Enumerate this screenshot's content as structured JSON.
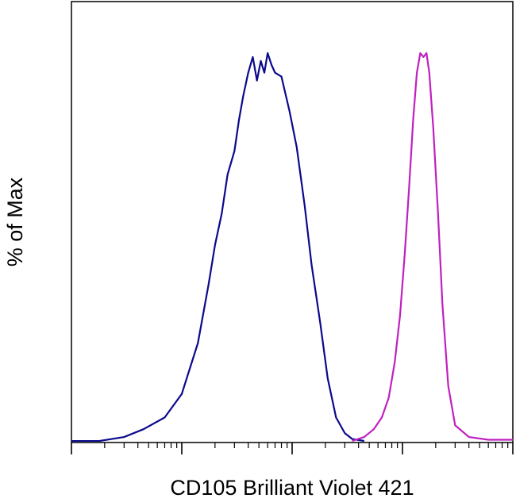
{
  "chart_data": {
    "type": "line",
    "title": "",
    "xlabel": "CD105 Brilliant Violet 421",
    "ylabel": "% of Max",
    "x_scale": "log",
    "xlim": [
      10,
      100000
    ],
    "ylim": [
      0,
      100
    ],
    "grid": false,
    "legend": "none",
    "series": [
      {
        "color": "#0a0a8c",
        "x": [
          18,
          30,
          45,
          70,
          100,
          140,
          175,
          200,
          230,
          260,
          300,
          330,
          360,
          400,
          440,
          480,
          520,
          560,
          600,
          650,
          700,
          800,
          950,
          1100,
          1300,
          1500,
          1800,
          2100,
          2500,
          3000,
          3500,
          4500
        ],
        "y": [
          0,
          1,
          3,
          6,
          12,
          25,
          40,
          50,
          58,
          68,
          74,
          82,
          88,
          94,
          98,
          92,
          97,
          94,
          99,
          96,
          94,
          93,
          84,
          75,
          60,
          45,
          30,
          16,
          6,
          2,
          0.5,
          0
        ]
      },
      {
        "color": "#c020c0",
        "x": [
          3500,
          4500,
          5500,
          6500,
          7500,
          8500,
          9500,
          10500,
          11500,
          12500,
          13500,
          14500,
          15500,
          16500,
          17500,
          19000,
          21000,
          23000,
          26000,
          30000,
          40000,
          60000,
          100000
        ],
        "y": [
          0,
          1,
          3,
          6,
          11,
          20,
          32,
          48,
          65,
          82,
          94,
          99,
          98,
          99,
          94,
          80,
          58,
          35,
          14,
          4,
          1,
          0.3,
          0.3
        ]
      }
    ]
  }
}
